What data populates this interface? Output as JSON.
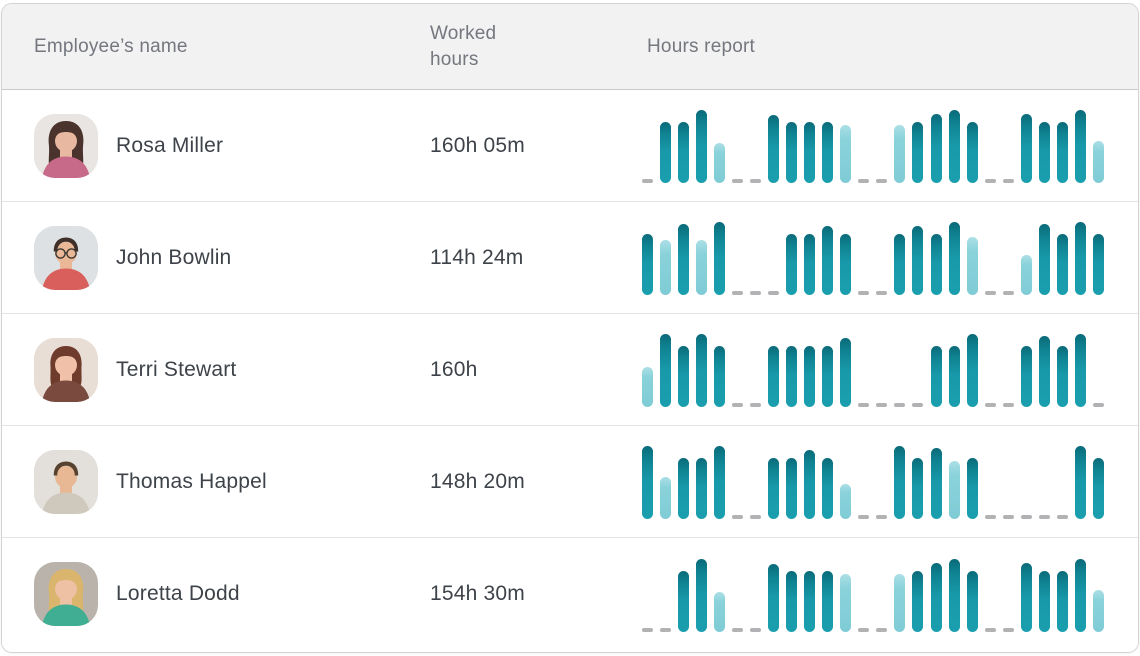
{
  "table": {
    "columns": [
      "Employee’s name",
      "Worked hours",
      "Hours report"
    ]
  },
  "report_legend": {
    "slot_encoding": "d = day off (gray dash); B<n> = worked day bar in dark teal; L<n> = partial/short day bar in light teal; <n> = bar height as percent of tallest bar",
    "slots_per_row": 26
  },
  "colors": {
    "bar_dark_teal": "#1899a9",
    "bar_dark_teal_top": "#0a6a78",
    "bar_light_teal": "#7fccd6",
    "day_off_dash": "#b2b2b4",
    "header_bg": "#f2f2f3",
    "header_text": "#74777e",
    "body_text": "#3e4349",
    "row_divider": "#e4e4e7",
    "card_border": "#d3d3d6"
  },
  "rows": [
    {
      "name": "Rosa Miller",
      "worked_hours": "160h 05m",
      "avatar": {
        "bg": "#e9e5e2",
        "hair": "#4a332c",
        "skin": "#e8b8a0",
        "shirt": "#c76a8a",
        "hair_style": "long",
        "glasses": false
      },
      "report": [
        "d",
        "B83",
        "B83",
        "B100",
        "L55",
        "d",
        "d",
        "B93",
        "B83",
        "B83",
        "B83",
        "L80",
        "d",
        "d",
        "L80",
        "B83",
        "B94",
        "B100",
        "B83",
        "d",
        "d",
        "B94",
        "B83",
        "B83",
        "B100",
        "L58"
      ]
    },
    {
      "name": "John Bowlin",
      "worked_hours": "114h 24m",
      "avatar": {
        "bg": "#dde1e3",
        "hair": "#3f2f28",
        "skin": "#eab896",
        "shirt": "#d95f5c",
        "hair_style": "short",
        "glasses": true
      },
      "report": [
        "B83",
        "L76",
        "B97",
        "L76",
        "B100",
        "d",
        "d",
        "d",
        "B83",
        "B83",
        "B94",
        "B83",
        "d",
        "d",
        "B83",
        "B94",
        "B83",
        "B100",
        "L80",
        "d",
        "d",
        "L55",
        "B97",
        "B83",
        "B100",
        "B83"
      ]
    },
    {
      "name": "Terri Stewart",
      "worked_hours": "160h",
      "avatar": {
        "bg": "#e8ded6",
        "hair": "#6e3b2c",
        "skin": "#f0c0a8",
        "shirt": "#7a4a3e",
        "hair_style": "bob",
        "glasses": false
      },
      "report": [
        "L55",
        "B100",
        "B83",
        "B100",
        "B83",
        "d",
        "d",
        "B83",
        "B83",
        "B83",
        "B83",
        "B94",
        "d",
        "d",
        "d",
        "d",
        "B83",
        "B83",
        "B100",
        "d",
        "d",
        "B83",
        "B97",
        "B83",
        "B100",
        "d"
      ]
    },
    {
      "name": "Thomas Happel",
      "worked_hours": "148h 20m",
      "avatar": {
        "bg": "#e3e0db",
        "hair": "#57422f",
        "skin": "#e8b894",
        "shirt": "#cfc8bd",
        "hair_style": "short",
        "glasses": false
      },
      "report": [
        "B100",
        "L58",
        "B83",
        "B83",
        "B100",
        "d",
        "d",
        "B83",
        "B83",
        "B94",
        "B83",
        "L48",
        "d",
        "d",
        "B100",
        "B83",
        "B97",
        "L80",
        "B83",
        "d",
        "d",
        "d",
        "d",
        "d",
        "B100",
        "B83"
      ]
    },
    {
      "name": "Loretta Dodd",
      "worked_hours": "154h 30m",
      "avatar": {
        "bg": "#b9b3ac",
        "hair": "#d9b56e",
        "skin": "#eec0a4",
        "shirt": "#3fae92",
        "hair_style": "long",
        "glasses": false
      },
      "report": [
        "d",
        "d",
        "B83",
        "B100",
        "L55",
        "d",
        "d",
        "B93",
        "B83",
        "B83",
        "B83",
        "L80",
        "d",
        "d",
        "L80",
        "B83",
        "B94",
        "B100",
        "B83",
        "d",
        "d",
        "B94",
        "B83",
        "B83",
        "B100",
        "L58"
      ]
    }
  ]
}
